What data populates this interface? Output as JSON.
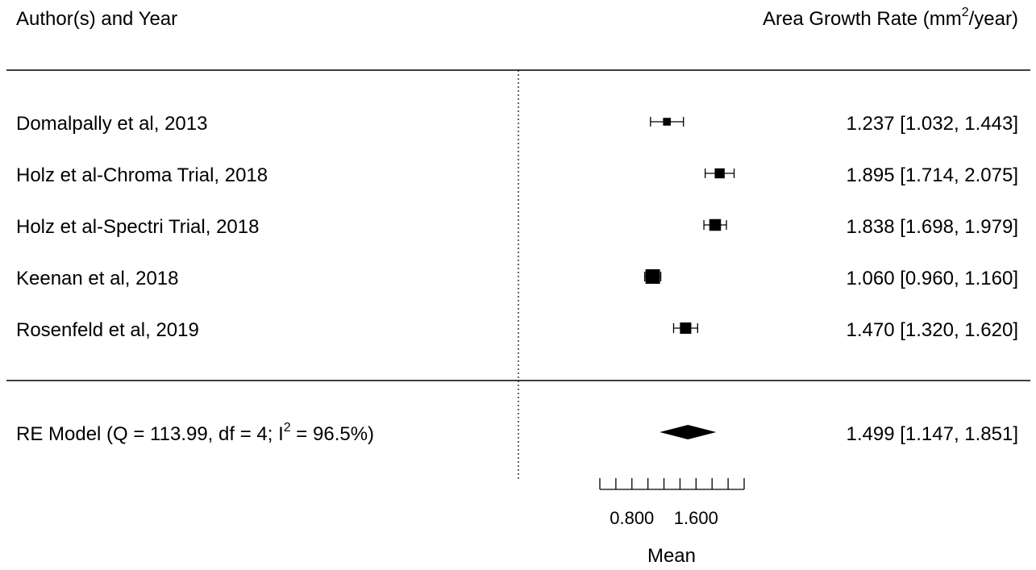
{
  "chart_data": {
    "type": "forest",
    "header_left": "Author(s) and Year",
    "header_right_main": "Area Growth Rate (mm",
    "header_right_sup": "2",
    "header_right_tail": "/year)",
    "xlabel": "Mean",
    "xlim": [
      0.4,
      2.2
    ],
    "x_ticks": [
      0.4,
      0.6,
      0.8,
      1.0,
      1.2,
      1.4,
      1.6,
      1.8,
      2.0,
      2.2
    ],
    "x_tick_labels": [
      {
        "value": 0.8,
        "label": "0.800"
      },
      {
        "value": 1.6,
        "label": "1.600"
      }
    ],
    "reference_line": 0,
    "studies": [
      {
        "label": "Domalpally et al, 2013",
        "estimate": 1.237,
        "ci_low": 1.032,
        "ci_high": 1.443,
        "estimate_text": "1.237 [1.032, 1.443]",
        "weight": 0.4
      },
      {
        "label": "Holz et al-Chroma Trial, 2018",
        "estimate": 1.895,
        "ci_low": 1.714,
        "ci_high": 2.075,
        "estimate_text": "1.895 [1.714, 2.075]",
        "weight": 0.6
      },
      {
        "label": "Holz et al-Spectri Trial, 2018",
        "estimate": 1.838,
        "ci_low": 1.698,
        "ci_high": 1.979,
        "estimate_text": "1.838 [1.698, 1.979]",
        "weight": 0.75
      },
      {
        "label": "Keenan et al, 2018",
        "estimate": 1.06,
        "ci_low": 0.96,
        "ci_high": 1.16,
        "estimate_text": "1.060 [0.960, 1.160]",
        "weight": 1.0
      },
      {
        "label": "Rosenfeld et al, 2019",
        "estimate": 1.47,
        "ci_low": 1.32,
        "ci_high": 1.62,
        "estimate_text": "1.470 [1.320, 1.620]",
        "weight": 0.72
      }
    ],
    "summary": {
      "label_main": "RE Model  (Q = 113.99, df = 4; I",
      "label_sup": "2",
      "label_tail": " = 96.5%)",
      "estimate": 1.499,
      "ci_low": 1.147,
      "ci_high": 1.851,
      "estimate_text": "1.499 [1.147, 1.851]"
    }
  }
}
